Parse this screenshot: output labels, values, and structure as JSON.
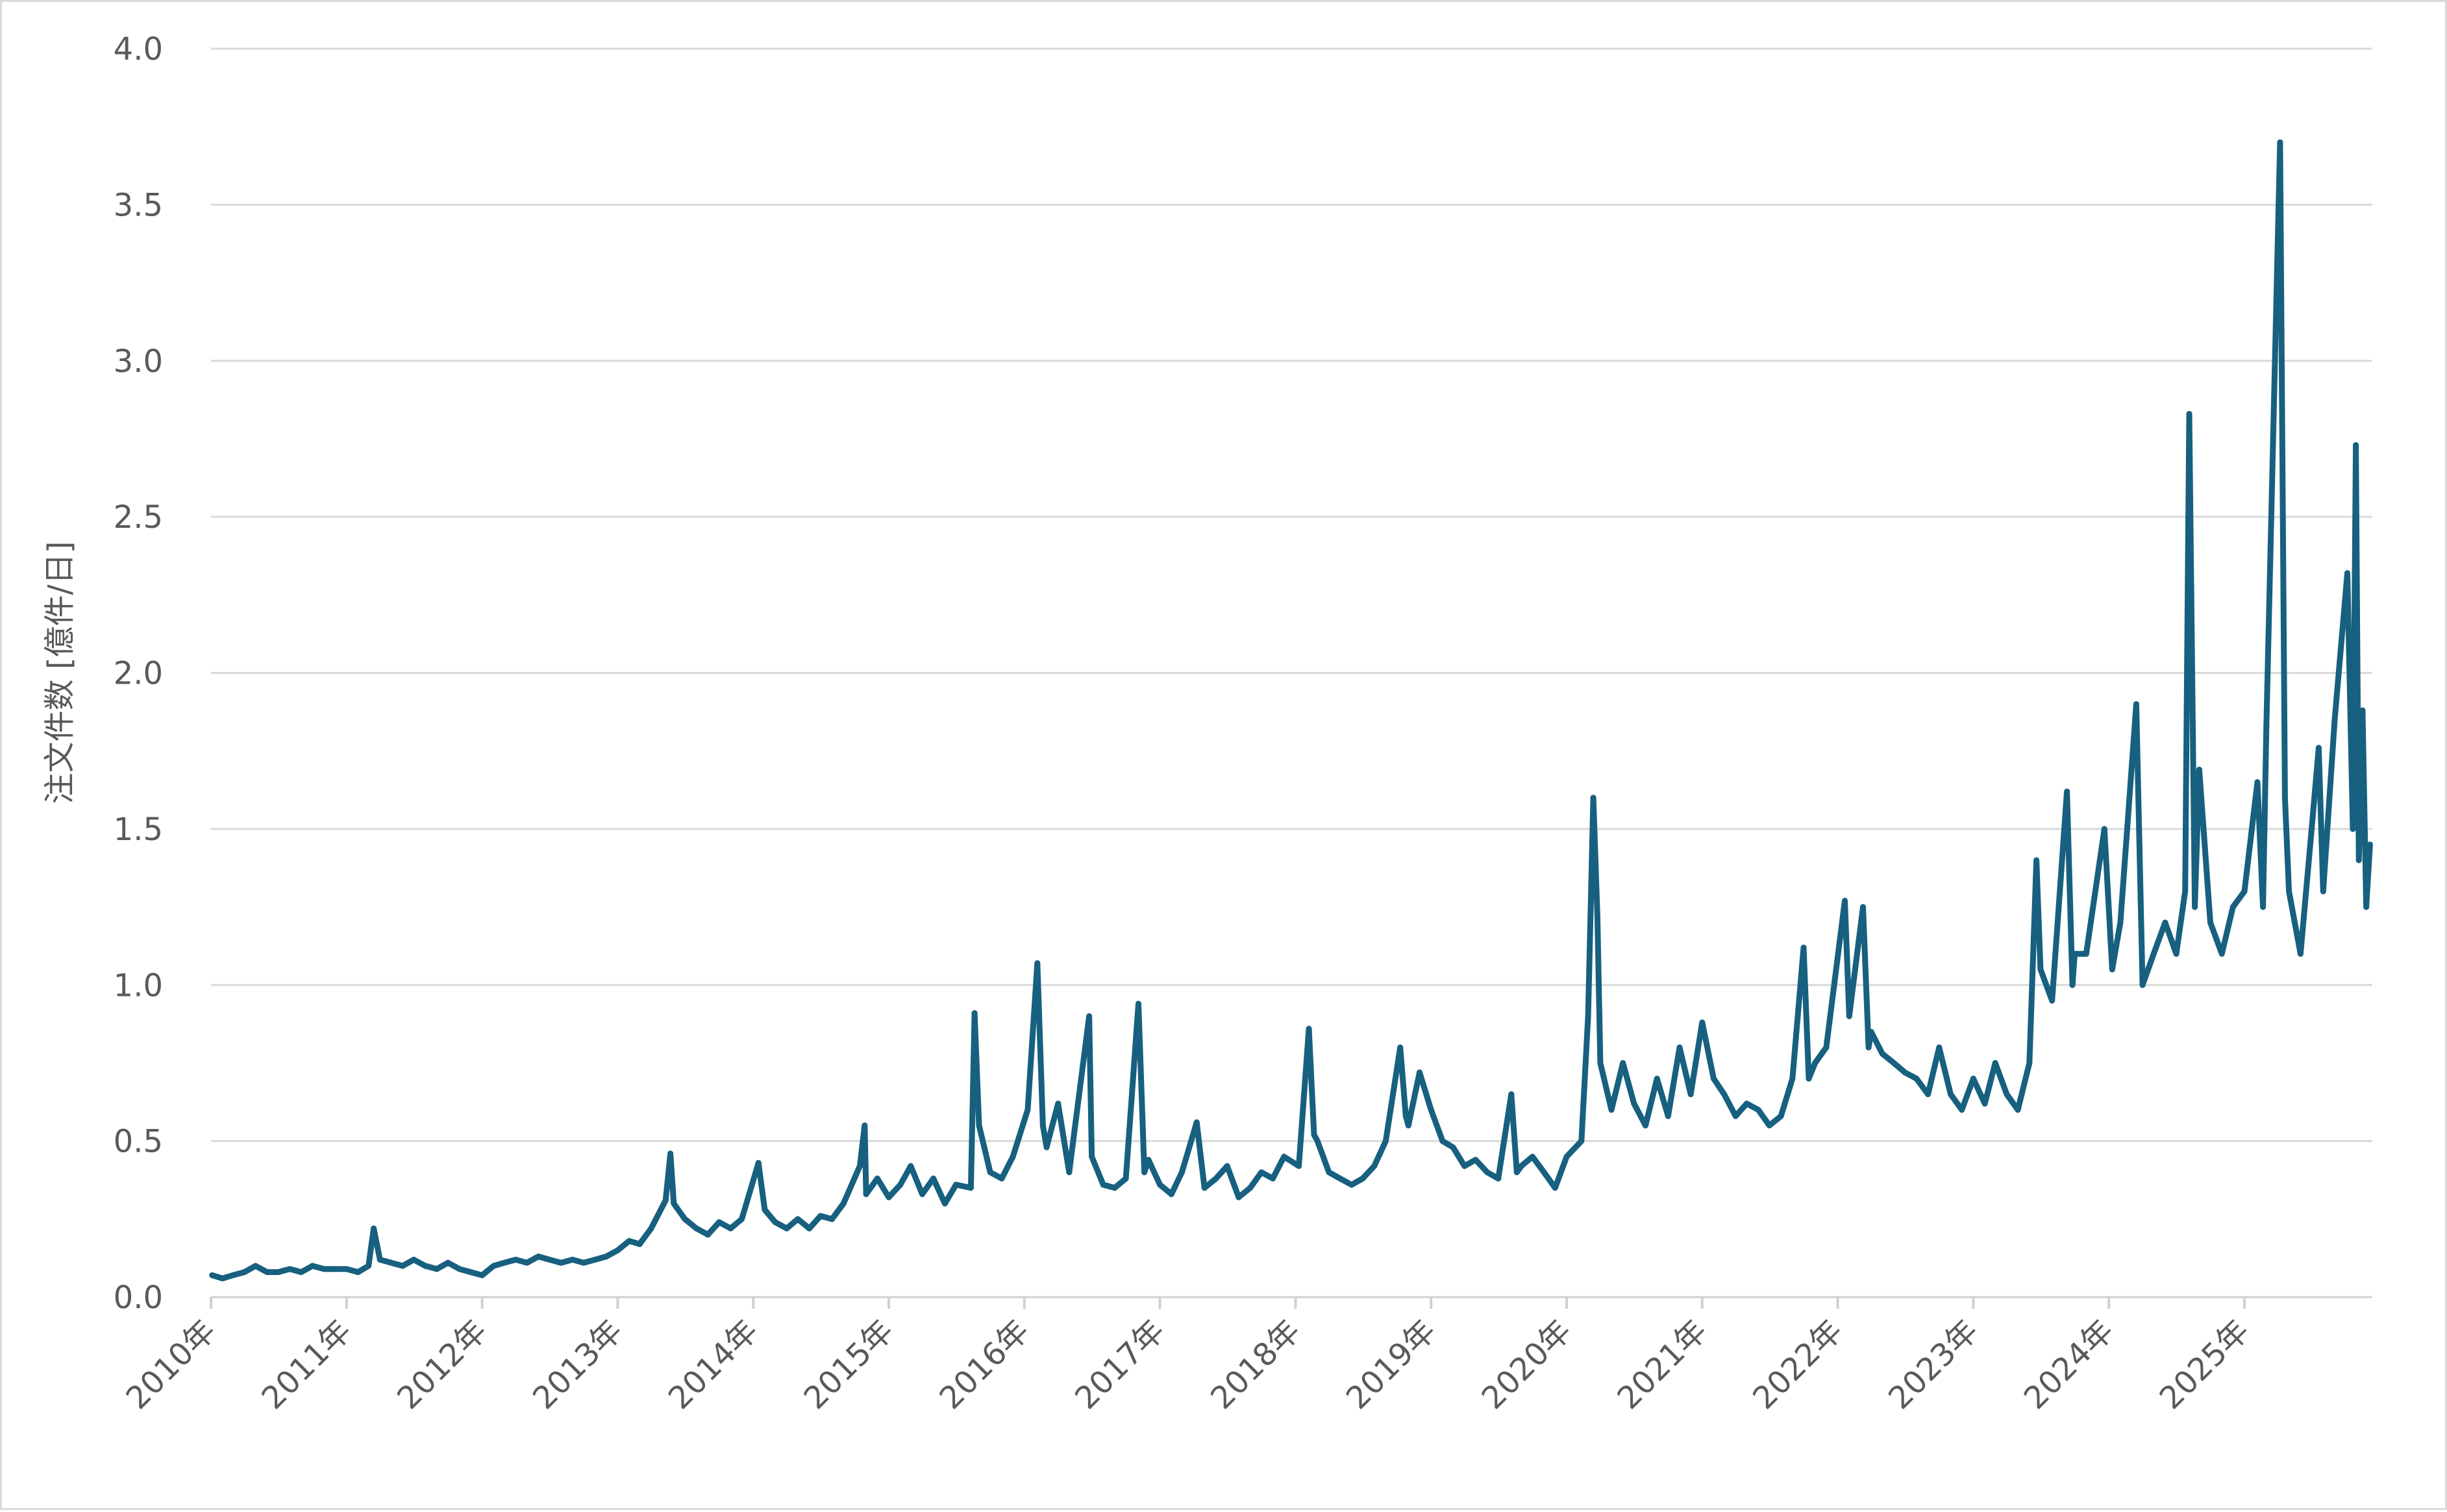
{
  "chart_data": {
    "type": "line",
    "title": "",
    "xlabel": "",
    "ylabel": "注文件数 [億件/日]",
    "ylim": [
      0,
      4.0
    ],
    "yticks": [
      "0.0",
      "0.5",
      "1.0",
      "1.5",
      "2.0",
      "2.5",
      "3.0",
      "3.5",
      "4.0"
    ],
    "xticks": [
      "2010年",
      "2011年",
      "2012年",
      "2013年",
      "2014年",
      "2015年",
      "2016年",
      "2017年",
      "2018年",
      "2019年",
      "2020年",
      "2021年",
      "2022年",
      "2023年",
      "2024年",
      "2025年"
    ],
    "xlim": [
      "2010-01-01",
      "2025-12-15"
    ],
    "grid": "horizontal",
    "color": "#17607F",
    "series": [
      {
        "points": [
          [
            "2010-01-04",
            0.07
          ],
          [
            "2010-02-01",
            0.06
          ],
          [
            "2010-03-01",
            0.07
          ],
          [
            "2010-04-01",
            0.08
          ],
          [
            "2010-05-01",
            0.1
          ],
          [
            "2010-06-01",
            0.08
          ],
          [
            "2010-07-01",
            0.08
          ],
          [
            "2010-08-01",
            0.09
          ],
          [
            "2010-09-01",
            0.08
          ],
          [
            "2010-10-01",
            0.1
          ],
          [
            "2010-11-01",
            0.09
          ],
          [
            "2010-12-01",
            0.09
          ],
          [
            "2011-01-01",
            0.09
          ],
          [
            "2011-02-01",
            0.08
          ],
          [
            "2011-03-01",
            0.1
          ],
          [
            "2011-03-15",
            0.22
          ],
          [
            "2011-04-01",
            0.12
          ],
          [
            "2011-05-01",
            0.11
          ],
          [
            "2011-06-01",
            0.1
          ],
          [
            "2011-07-01",
            0.12
          ],
          [
            "2011-08-01",
            0.1
          ],
          [
            "2011-09-01",
            0.09
          ],
          [
            "2011-10-01",
            0.11
          ],
          [
            "2011-11-01",
            0.09
          ],
          [
            "2011-12-01",
            0.08
          ],
          [
            "2012-01-01",
            0.07
          ],
          [
            "2012-02-01",
            0.1
          ],
          [
            "2012-03-01",
            0.11
          ],
          [
            "2012-04-01",
            0.12
          ],
          [
            "2012-05-01",
            0.11
          ],
          [
            "2012-06-01",
            0.13
          ],
          [
            "2012-07-01",
            0.12
          ],
          [
            "2012-08-01",
            0.11
          ],
          [
            "2012-09-01",
            0.12
          ],
          [
            "2012-10-01",
            0.11
          ],
          [
            "2012-11-01",
            0.12
          ],
          [
            "2012-12-01",
            0.13
          ],
          [
            "2013-01-01",
            0.15
          ],
          [
            "2013-02-01",
            0.18
          ],
          [
            "2013-03-01",
            0.17
          ],
          [
            "2013-04-01",
            0.22
          ],
          [
            "2013-05-10",
            0.31
          ],
          [
            "2013-05-23",
            0.46
          ],
          [
            "2013-06-01",
            0.3
          ],
          [
            "2013-07-01",
            0.25
          ],
          [
            "2013-08-01",
            0.22
          ],
          [
            "2013-09-01",
            0.2
          ],
          [
            "2013-10-01",
            0.24
          ],
          [
            "2013-11-01",
            0.22
          ],
          [
            "2013-12-01",
            0.25
          ],
          [
            "2014-01-15",
            0.43
          ],
          [
            "2014-02-01",
            0.28
          ],
          [
            "2014-03-01",
            0.24
          ],
          [
            "2014-04-01",
            0.22
          ],
          [
            "2014-05-01",
            0.25
          ],
          [
            "2014-06-01",
            0.22
          ],
          [
            "2014-07-01",
            0.26
          ],
          [
            "2014-08-01",
            0.25
          ],
          [
            "2014-09-01",
            0.3
          ],
          [
            "2014-10-15",
            0.42
          ],
          [
            "2014-10-28",
            0.55
          ],
          [
            "2014-11-01",
            0.33
          ],
          [
            "2014-12-01",
            0.38
          ],
          [
            "2015-01-01",
            0.32
          ],
          [
            "2015-02-01",
            0.36
          ],
          [
            "2015-03-01",
            0.42
          ],
          [
            "2015-04-01",
            0.33
          ],
          [
            "2015-05-01",
            0.38
          ],
          [
            "2015-06-01",
            0.3
          ],
          [
            "2015-07-01",
            0.36
          ],
          [
            "2015-08-10",
            0.35
          ],
          [
            "2015-08-20",
            0.91
          ],
          [
            "2015-09-01",
            0.55
          ],
          [
            "2015-10-01",
            0.4
          ],
          [
            "2015-11-01",
            0.38
          ],
          [
            "2015-12-01",
            0.45
          ],
          [
            "2016-01-10",
            0.6
          ],
          [
            "2016-02-05",
            1.07
          ],
          [
            "2016-02-20",
            0.55
          ],
          [
            "2016-03-01",
            0.48
          ],
          [
            "2016-04-01",
            0.62
          ],
          [
            "2016-05-01",
            0.4
          ],
          [
            "2016-06-24",
            0.9
          ],
          [
            "2016-07-01",
            0.45
          ],
          [
            "2016-08-01",
            0.36
          ],
          [
            "2016-09-01",
            0.35
          ],
          [
            "2016-10-01",
            0.38
          ],
          [
            "2016-11-04",
            0.94
          ],
          [
            "2016-11-20",
            0.4
          ],
          [
            "2016-12-01",
            0.44
          ],
          [
            "2017-01-01",
            0.36
          ],
          [
            "2017-02-01",
            0.33
          ],
          [
            "2017-03-01",
            0.4
          ],
          [
            "2017-04-10",
            0.56
          ],
          [
            "2017-05-01",
            0.35
          ],
          [
            "2017-06-01",
            0.38
          ],
          [
            "2017-07-01",
            0.42
          ],
          [
            "2017-08-01",
            0.32
          ],
          [
            "2017-09-01",
            0.35
          ],
          [
            "2017-10-01",
            0.4
          ],
          [
            "2017-11-01",
            0.38
          ],
          [
            "2017-12-01",
            0.45
          ],
          [
            "2018-01-10",
            0.42
          ],
          [
            "2018-02-06",
            0.86
          ],
          [
            "2018-02-20",
            0.52
          ],
          [
            "2018-03-01",
            0.5
          ],
          [
            "2018-04-01",
            0.4
          ],
          [
            "2018-05-01",
            0.38
          ],
          [
            "2018-06-01",
            0.36
          ],
          [
            "2018-07-01",
            0.38
          ],
          [
            "2018-08-01",
            0.42
          ],
          [
            "2018-09-01",
            0.5
          ],
          [
            "2018-10-10",
            0.8
          ],
          [
            "2018-10-25",
            0.58
          ],
          [
            "2018-11-01",
            0.55
          ],
          [
            "2018-12-01",
            0.72
          ],
          [
            "2019-01-01",
            0.6
          ],
          [
            "2019-02-01",
            0.5
          ],
          [
            "2019-03-01",
            0.48
          ],
          [
            "2019-04-01",
            0.42
          ],
          [
            "2019-05-01",
            0.44
          ],
          [
            "2019-06-01",
            0.4
          ],
          [
            "2019-07-01",
            0.38
          ],
          [
            "2019-08-05",
            0.65
          ],
          [
            "2019-08-20",
            0.4
          ],
          [
            "2019-09-01",
            0.42
          ],
          [
            "2019-10-01",
            0.45
          ],
          [
            "2019-11-01",
            0.4
          ],
          [
            "2019-12-01",
            0.35
          ],
          [
            "2020-01-01",
            0.45
          ],
          [
            "2020-02-10",
            0.5
          ],
          [
            "2020-02-28",
            0.9
          ],
          [
            "2020-03-13",
            1.6
          ],
          [
            "2020-03-24",
            1.22
          ],
          [
            "2020-04-01",
            0.75
          ],
          [
            "2020-05-01",
            0.6
          ],
          [
            "2020-06-01",
            0.75
          ],
          [
            "2020-07-01",
            0.62
          ],
          [
            "2020-08-01",
            0.55
          ],
          [
            "2020-09-01",
            0.7
          ],
          [
            "2020-10-01",
            0.58
          ],
          [
            "2020-11-01",
            0.8
          ],
          [
            "2020-12-01",
            0.65
          ],
          [
            "2021-01-01",
            0.88
          ],
          [
            "2021-02-01",
            0.7
          ],
          [
            "2021-03-01",
            0.65
          ],
          [
            "2021-04-01",
            0.58
          ],
          [
            "2021-05-01",
            0.62
          ],
          [
            "2021-06-01",
            0.6
          ],
          [
            "2021-07-01",
            0.55
          ],
          [
            "2021-08-01",
            0.58
          ],
          [
            "2021-09-01",
            0.7
          ],
          [
            "2021-10-01",
            1.12
          ],
          [
            "2021-10-15",
            0.7
          ],
          [
            "2021-11-01",
            0.75
          ],
          [
            "2021-12-01",
            0.8
          ],
          [
            "2022-01-20",
            1.27
          ],
          [
            "2022-02-01",
            0.9
          ],
          [
            "2022-03-10",
            1.25
          ],
          [
            "2022-03-25",
            0.8
          ],
          [
            "2022-04-01",
            0.85
          ],
          [
            "2022-05-01",
            0.78
          ],
          [
            "2022-06-01",
            0.75
          ],
          [
            "2022-07-01",
            0.72
          ],
          [
            "2022-08-01",
            0.7
          ],
          [
            "2022-09-01",
            0.65
          ],
          [
            "2022-10-01",
            0.8
          ],
          [
            "2022-11-01",
            0.65
          ],
          [
            "2022-12-01",
            0.6
          ],
          [
            "2023-01-01",
            0.7
          ],
          [
            "2023-02-01",
            0.62
          ],
          [
            "2023-03-01",
            0.75
          ],
          [
            "2023-04-01",
            0.65
          ],
          [
            "2023-05-01",
            0.6
          ],
          [
            "2023-06-01",
            0.75
          ],
          [
            "2023-06-20",
            1.4
          ],
          [
            "2023-07-01",
            1.05
          ],
          [
            "2023-08-01",
            0.95
          ],
          [
            "2023-09-10",
            1.62
          ],
          [
            "2023-09-25",
            1.0
          ],
          [
            "2023-10-01",
            1.1
          ],
          [
            "2023-11-01",
            1.1
          ],
          [
            "2023-12-20",
            1.5
          ],
          [
            "2024-01-10",
            1.05
          ],
          [
            "2024-02-01",
            1.2
          ],
          [
            "2024-03-15",
            1.9
          ],
          [
            "2024-04-01",
            1.0
          ],
          [
            "2024-05-01",
            1.1
          ],
          [
            "2024-06-01",
            1.2
          ],
          [
            "2024-07-01",
            1.1
          ],
          [
            "2024-07-25",
            1.3
          ],
          [
            "2024-08-05",
            2.83
          ],
          [
            "2024-08-20",
            1.25
          ],
          [
            "2024-09-01",
            1.69
          ],
          [
            "2024-10-01",
            1.2
          ],
          [
            "2024-11-01",
            1.1
          ],
          [
            "2024-12-01",
            1.25
          ],
          [
            "2025-01-01",
            1.3
          ],
          [
            "2025-02-05",
            1.65
          ],
          [
            "2025-02-20",
            1.25
          ],
          [
            "2025-03-01",
            1.83
          ],
          [
            "2025-04-07",
            3.7
          ],
          [
            "2025-04-20",
            1.6
          ],
          [
            "2025-05-01",
            1.3
          ],
          [
            "2025-06-01",
            1.1
          ],
          [
            "2025-07-01",
            1.5
          ],
          [
            "2025-07-20",
            1.76
          ],
          [
            "2025-08-01",
            1.3
          ],
          [
            "2025-09-01",
            1.85
          ],
          [
            "2025-10-05",
            2.32
          ],
          [
            "2025-10-20",
            1.5
          ],
          [
            "2025-10-28",
            2.73
          ],
          [
            "2025-11-05",
            1.4
          ],
          [
            "2025-11-15",
            1.88
          ],
          [
            "2025-11-25",
            1.25
          ],
          [
            "2025-12-05",
            1.45
          ]
        ]
      }
    ]
  }
}
